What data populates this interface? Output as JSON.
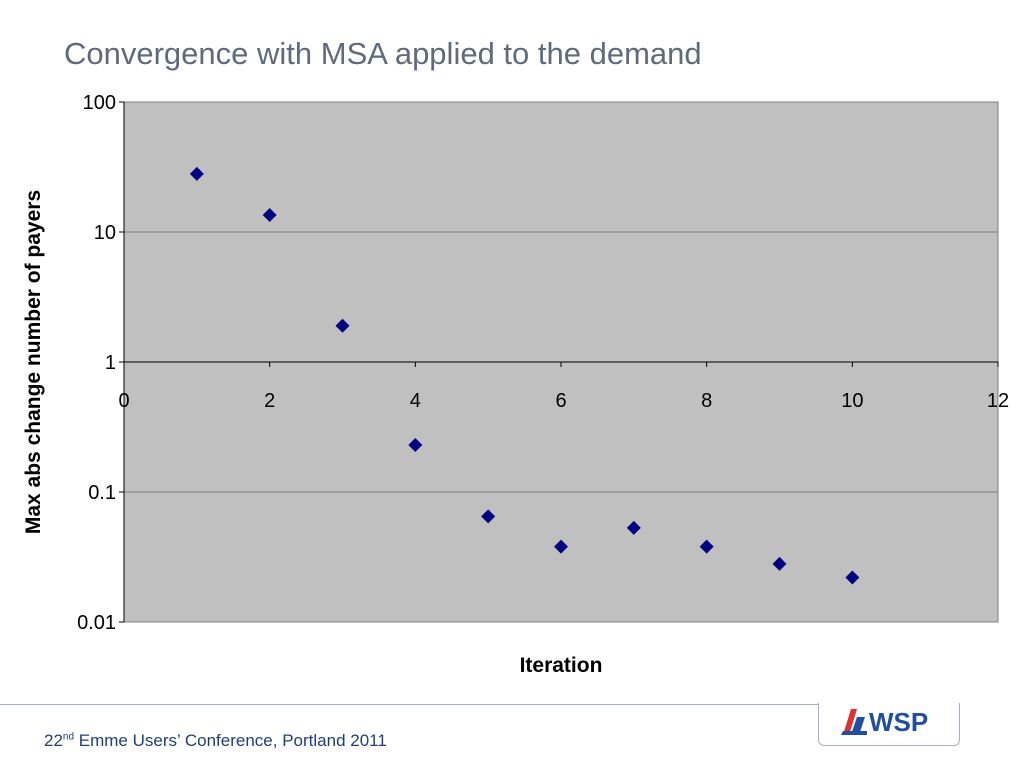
{
  "slide": {
    "title": "Convergence with MSA applied to the demand",
    "footer_ordinal_num": "22",
    "footer_ordinal_sup": "nd",
    "footer_text": " Emme Users’ Conference, Portland 2011",
    "logo_text": "WSP"
  },
  "colors": {
    "plot_background": "#c0c0c0",
    "marker": "#000080",
    "title": "#5f6b7c",
    "footer": "#1f3f7a",
    "logo_blue": "#1f4fa0",
    "logo_red": "#e03030"
  },
  "chart_data": {
    "type": "scatter",
    "title": "",
    "xlabel": "Iteration",
    "ylabel": "Max abs change number of payers",
    "xlim": [
      0,
      12
    ],
    "x_ticks": [
      0,
      2,
      4,
      6,
      8,
      10,
      12
    ],
    "x_tick_labels": [
      "0",
      "2",
      "4",
      "6",
      "8",
      "10",
      "12"
    ],
    "ylim": [
      0.01,
      100
    ],
    "y_scale": "log",
    "y_ticks": [
      100,
      10,
      1,
      0.1,
      0.01
    ],
    "y_tick_labels": [
      "100",
      "10",
      "1",
      "0.1",
      "0.01"
    ],
    "x_axis_crosses_at": 1,
    "grid": "horizontal major gridlines",
    "legend": "none",
    "marker": "diamond",
    "series": [
      {
        "x": [
          1,
          2,
          3,
          4,
          5,
          6,
          7,
          8,
          9,
          10
        ],
        "y": [
          28,
          13.5,
          1.9,
          0.23,
          0.065,
          0.038,
          0.053,
          0.038,
          0.028,
          0.022
        ]
      }
    ]
  }
}
